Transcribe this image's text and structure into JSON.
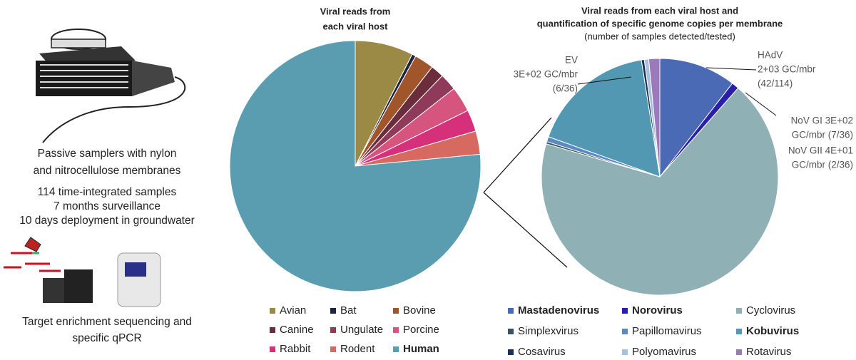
{
  "left_panel": {
    "sampler_caption": [
      "Passive samplers with nylon",
      "and nitrocellulose membranes"
    ],
    "stats": [
      "114 time-integrated samples",
      "7 months surveillance",
      "10 days deployment in groundwater"
    ],
    "method_caption": [
      "Target enrichment sequencing and",
      "specific qPCR"
    ]
  },
  "chart_data": [
    {
      "type": "pie",
      "title": [
        "Viral reads from",
        "each viral host"
      ],
      "categories": [
        "Avian",
        "Bat",
        "Bovine",
        "Canine",
        "Ungulate",
        "Porcine",
        "Rabbit",
        "Rodent",
        "Human"
      ],
      "values": [
        7.5,
        0.5,
        2.5,
        1.7,
        2.2,
        3.3,
        2.8,
        3,
        76.5
      ],
      "colors": [
        "#9a8a45",
        "#1d2440",
        "#a0562a",
        "#6b2c3c",
        "#8e3a58",
        "#d6557f",
        "#d6307a",
        "#d66a60",
        "#5b9db0"
      ],
      "legend_bold": [
        false,
        false,
        false,
        false,
        false,
        false,
        false,
        false,
        true
      ]
    },
    {
      "type": "pie",
      "title": [
        "Viral reads from each viral host and",
        "quantification of specific genome copies per membrane"
      ],
      "subtitle": "(number of samples detected/tested)",
      "categories": [
        "Mastadenovirus",
        "Norovirus",
        "Cyclovirus",
        "Simplexvirus",
        "Papillomavirus",
        "Kobuvirus",
        "Cosavirus",
        "Polyomavirus",
        "Rotavirus"
      ],
      "values": [
        10.5,
        1,
        68,
        0.3,
        0.7,
        17,
        0.4,
        0.6,
        1.5
      ],
      "colors": [
        "#4a6ab5",
        "#2a1fa8",
        "#8fb0b5",
        "#37535c",
        "#5a8ac0",
        "#5398b2",
        "#1e2f5a",
        "#a8c0e0",
        "#9a7ab8"
      ],
      "legend_bold": [
        true,
        true,
        false,
        false,
        false,
        true,
        false,
        false,
        false
      ],
      "annotations": [
        [
          "EV",
          "3E+02 GC/mbr",
          "(6/36)"
        ],
        [
          "HAdV",
          "2+03 GC/mbr",
          "(42/114)"
        ],
        [
          "NoV GI 3E+02",
          "GC/mbr (7/36)",
          "NoV GII 4E+01",
          "GC/mbr (2/36)"
        ]
      ]
    }
  ]
}
